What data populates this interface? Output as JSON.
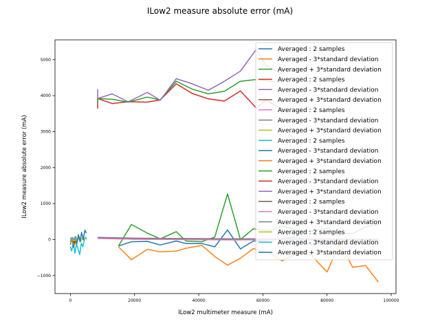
{
  "chart_data": {
    "type": "line",
    "title": "ILow2 measure absolute error (mA)",
    "xlabel": "ILow2 multimeter measure (mA)",
    "ylabel": "ILow2 measure absolute error (mA)",
    "xlim": [
      -4800,
      101500
    ],
    "ylim": [
      -1500,
      5550
    ],
    "xticks": [
      0,
      20000,
      40000,
      60000,
      80000,
      100000
    ],
    "yticks": [
      -1000,
      0,
      1000,
      2000,
      3000,
      4000,
      5000
    ],
    "legend_position": "top-right",
    "series": [
      {
        "name": "Averaged : 2 samples",
        "color": "#1f77b4",
        "points": [
          [
            15000,
            -180
          ],
          [
            19000,
            -60
          ],
          [
            24000,
            -50
          ],
          [
            28000,
            -150
          ],
          [
            33000,
            -40
          ],
          [
            36000,
            -110
          ],
          [
            41000,
            -110
          ],
          [
            45000,
            -200
          ],
          [
            49000,
            270
          ],
          [
            53000,
            -260
          ],
          [
            57000,
            -40
          ],
          [
            62000,
            -10
          ],
          [
            66000,
            30
          ],
          [
            71000,
            80
          ],
          [
            75000,
            -150
          ],
          [
            80000,
            -50
          ],
          [
            84000,
            0
          ],
          [
            88000,
            -30
          ],
          [
            92000,
            0
          ],
          [
            96000,
            -20
          ]
        ]
      },
      {
        "name": "Averaged - 3*standard deviation",
        "color": "#ff7f0e",
        "points": [
          [
            15000,
            -200
          ],
          [
            19000,
            -560
          ],
          [
            24000,
            -270
          ],
          [
            28000,
            -340
          ],
          [
            33000,
            -320
          ],
          [
            36000,
            -240
          ],
          [
            41000,
            -160
          ],
          [
            45000,
            -470
          ],
          [
            49000,
            -710
          ],
          [
            53000,
            -520
          ],
          [
            57000,
            -250
          ],
          [
            62000,
            -380
          ],
          [
            66000,
            -590
          ],
          [
            71000,
            -370
          ],
          [
            75000,
            -430
          ],
          [
            80000,
            -900
          ],
          [
            84000,
            -100
          ],
          [
            88000,
            -770
          ],
          [
            92000,
            -720
          ],
          [
            96000,
            -1180
          ]
        ]
      },
      {
        "name": "Averaged + 3*standard deviation",
        "color": "#2ca02c",
        "points": [
          [
            15000,
            -180
          ],
          [
            19000,
            420
          ],
          [
            24000,
            180
          ],
          [
            28000,
            20
          ],
          [
            33000,
            220
          ],
          [
            36000,
            -40
          ],
          [
            41000,
            -60
          ],
          [
            45000,
            70
          ],
          [
            49000,
            1270
          ],
          [
            53000,
            0
          ],
          [
            57000,
            300
          ],
          [
            62000,
            250
          ],
          [
            66000,
            380
          ],
          [
            71000,
            240
          ],
          [
            75000,
            230
          ],
          [
            80000,
            320
          ],
          [
            84000,
            180
          ],
          [
            88000,
            170
          ],
          [
            92000,
            350
          ],
          [
            96000,
            420
          ]
        ]
      },
      {
        "name": "Averaged : 2 samples",
        "color": "#d62728",
        "points": [
          [
            8500,
            3640
          ],
          [
            8500,
            3920
          ],
          [
            13000,
            3780
          ],
          [
            18000,
            3830
          ],
          [
            24000,
            3820
          ],
          [
            28000,
            3880
          ],
          [
            33000,
            4330
          ],
          [
            38000,
            4060
          ],
          [
            43000,
            3910
          ],
          [
            48000,
            3850
          ],
          [
            53000,
            4130
          ],
          [
            58000,
            3650
          ],
          [
            61000,
            3880
          ],
          [
            64000,
            3720
          ],
          [
            66000,
            3640
          ]
        ]
      },
      {
        "name": "Averaged - 3*standard deviation",
        "color": "#2ca02c",
        "points": [
          [
            8500,
            3780
          ],
          [
            8500,
            3920
          ],
          [
            13000,
            3900
          ],
          [
            18000,
            3820
          ],
          [
            24000,
            3960
          ],
          [
            28000,
            3880
          ],
          [
            33000,
            4400
          ],
          [
            38000,
            4180
          ],
          [
            43000,
            4050
          ],
          [
            48000,
            4120
          ],
          [
            53000,
            4400
          ],
          [
            58000,
            4450
          ],
          [
            61000,
            4420
          ],
          [
            64000,
            4380
          ],
          [
            66000,
            4380
          ]
        ]
      },
      {
        "name": "Averaged + 3*standard deviation",
        "color": "#9467bd",
        "points": [
          [
            8500,
            4180
          ],
          [
            8500,
            3920
          ],
          [
            13000,
            4050
          ],
          [
            18000,
            3830
          ],
          [
            24000,
            4090
          ],
          [
            28000,
            3870
          ],
          [
            33000,
            4470
          ],
          [
            38000,
            4330
          ],
          [
            43000,
            4150
          ],
          [
            48000,
            4400
          ],
          [
            53000,
            4680
          ],
          [
            58000,
            5290
          ],
          [
            61000,
            4830
          ],
          [
            64000,
            4700
          ],
          [
            66000,
            4600
          ]
        ]
      },
      {
        "name": "Averaged : 2 samples",
        "color": "#8c564b",
        "points": [
          [
            8500,
            50
          ],
          [
            20000,
            30
          ],
          [
            35000,
            20
          ],
          [
            50000,
            10
          ],
          [
            65000,
            10
          ],
          [
            80000,
            5
          ],
          [
            96000,
            0
          ]
        ]
      },
      {
        "name": "Averaged - 3*standard deviation",
        "color": "#e377c2",
        "points": [
          [
            8500,
            30
          ],
          [
            20000,
            10
          ],
          [
            35000,
            0
          ],
          [
            50000,
            -10
          ],
          [
            65000,
            -5
          ],
          [
            80000,
            -15
          ],
          [
            96000,
            -20
          ]
        ]
      },
      {
        "name": "Averaged + 3*standard deviation",
        "color": "#7f7f7f",
        "points": [
          [
            8500,
            60
          ],
          [
            20000,
            40
          ],
          [
            35000,
            30
          ],
          [
            50000,
            20
          ],
          [
            65000,
            20
          ],
          [
            80000,
            15
          ],
          [
            96000,
            10
          ]
        ]
      },
      {
        "name": "Averaged : 2 samples",
        "color": "#bcbd22",
        "points": [
          [
            200,
            -50
          ],
          [
            700,
            60
          ],
          [
            1200,
            -80
          ],
          [
            1700,
            80
          ],
          [
            2200,
            -30
          ],
          [
            2700,
            90
          ],
          [
            3200,
            -60
          ],
          [
            3700,
            50
          ],
          [
            4200,
            -20
          ],
          [
            4700,
            40
          ],
          [
            5200,
            10
          ]
        ]
      },
      {
        "name": "Averaged - 3*standard deviation",
        "color": "#17becf",
        "points": [
          [
            0,
            -200
          ],
          [
            400,
            -320
          ],
          [
            900,
            -80
          ],
          [
            1400,
            -380
          ],
          [
            1900,
            -130
          ],
          [
            2400,
            -260
          ],
          [
            2900,
            -420
          ],
          [
            3400,
            -100
          ],
          [
            3900,
            -200
          ],
          [
            4400,
            20
          ],
          [
            4900,
            80
          ]
        ]
      },
      {
        "name": "Averaged + 3*standard deviation",
        "color": "#1f77b4",
        "points": [
          [
            0,
            -140
          ],
          [
            500,
            20
          ],
          [
            1000,
            -220
          ],
          [
            1500,
            80
          ],
          [
            2000,
            -120
          ],
          [
            2500,
            140
          ],
          [
            3000,
            -60
          ],
          [
            3500,
            200
          ],
          [
            4000,
            0
          ],
          [
            4500,
            260
          ],
          [
            5000,
            180
          ]
        ]
      },
      {
        "name": "Averaged : 2 samples",
        "color": "#ff7f0e",
        "points": [
          [
            0,
            -100
          ],
          [
            600,
            -20
          ],
          [
            1200,
            -160
          ],
          [
            1800,
            -60
          ]
        ]
      },
      {
        "name": "Averaged - 3*standard deviation",
        "color": "#2ca02c",
        "points": [
          [
            0,
            -60
          ],
          [
            600,
            0
          ],
          [
            1200,
            -120
          ],
          [
            1800,
            -40
          ]
        ]
      },
      {
        "name": "Averaged + 3*standard deviation",
        "color": "#d62728",
        "points": [
          [
            0,
            -20
          ],
          [
            600,
            40
          ],
          [
            1200,
            -80
          ],
          [
            1800,
            0
          ]
        ]
      },
      {
        "name": "Averaged : 2 samples",
        "color": "#9467bd",
        "points": [
          [
            0,
            10
          ],
          [
            600,
            30
          ],
          [
            1200,
            -10
          ],
          [
            1800,
            20
          ]
        ]
      },
      {
        "name": "Averaged - 3*standard deviation",
        "color": "#8c564b",
        "points": [
          [
            0,
            -30
          ],
          [
            600,
            -10
          ],
          [
            1200,
            -50
          ],
          [
            1800,
            -20
          ]
        ]
      },
      {
        "name": "Averaged + 3*standard deviation",
        "color": "#e377c2",
        "points": [
          [
            0,
            40
          ],
          [
            600,
            60
          ],
          [
            1200,
            20
          ],
          [
            1800,
            50
          ]
        ]
      },
      {
        "name": "Averaged : 2 samples",
        "color": "#7f7f7f",
        "points": [
          [
            0,
            0
          ],
          [
            600,
            10
          ],
          [
            1200,
            -10
          ],
          [
            1800,
            5
          ]
        ]
      },
      {
        "name": "Averaged - 3*standard deviation",
        "color": "#bcbd22",
        "points": [
          [
            0,
            -20
          ],
          [
            600,
            -5
          ],
          [
            1200,
            -30
          ],
          [
            1800,
            -10
          ]
        ]
      },
      {
        "name": "Averaged + 3*standard deviation",
        "color": "#17becf",
        "points": [
          [
            0,
            20
          ],
          [
            600,
            30
          ],
          [
            1200,
            10
          ],
          [
            1800,
            25
          ]
        ]
      }
    ],
    "legend": [
      {
        "label": "Averaged : 2 samples",
        "color": "#1f77b4"
      },
      {
        "label": "Averaged - 3*standard deviation",
        "color": "#ff7f0e"
      },
      {
        "label": "Averaged + 3*standard deviation",
        "color": "#2ca02c"
      },
      {
        "label": "Averaged : 2 samples",
        "color": "#d62728"
      },
      {
        "label": "Averaged - 3*standard deviation",
        "color": "#9467bd"
      },
      {
        "label": "Averaged + 3*standard deviation",
        "color": "#8c564b"
      },
      {
        "label": "Averaged : 2 samples",
        "color": "#e377c2"
      },
      {
        "label": "Averaged - 3*standard deviation",
        "color": "#7f7f7f"
      },
      {
        "label": "Averaged + 3*standard deviation",
        "color": "#bcbd22"
      },
      {
        "label": "Averaged : 2 samples",
        "color": "#17becf"
      },
      {
        "label": "Averaged - 3*standard deviation",
        "color": "#1f77b4"
      },
      {
        "label": "Averaged + 3*standard deviation",
        "color": "#ff7f0e"
      },
      {
        "label": "Averaged : 2 samples",
        "color": "#2ca02c"
      },
      {
        "label": "Averaged - 3*standard deviation",
        "color": "#d62728"
      },
      {
        "label": "Averaged + 3*standard deviation",
        "color": "#9467bd"
      },
      {
        "label": "Averaged : 2 samples",
        "color": "#8c564b"
      },
      {
        "label": "Averaged - 3*standard deviation",
        "color": "#e377c2"
      },
      {
        "label": "Averaged + 3*standard deviation",
        "color": "#7f7f7f"
      },
      {
        "label": "Averaged : 2 samples",
        "color": "#bcbd22"
      },
      {
        "label": "Averaged - 3*standard deviation",
        "color": "#17becf"
      },
      {
        "label": "Averaged + 3*standard deviation",
        "color": "#1f77b4"
      }
    ]
  }
}
